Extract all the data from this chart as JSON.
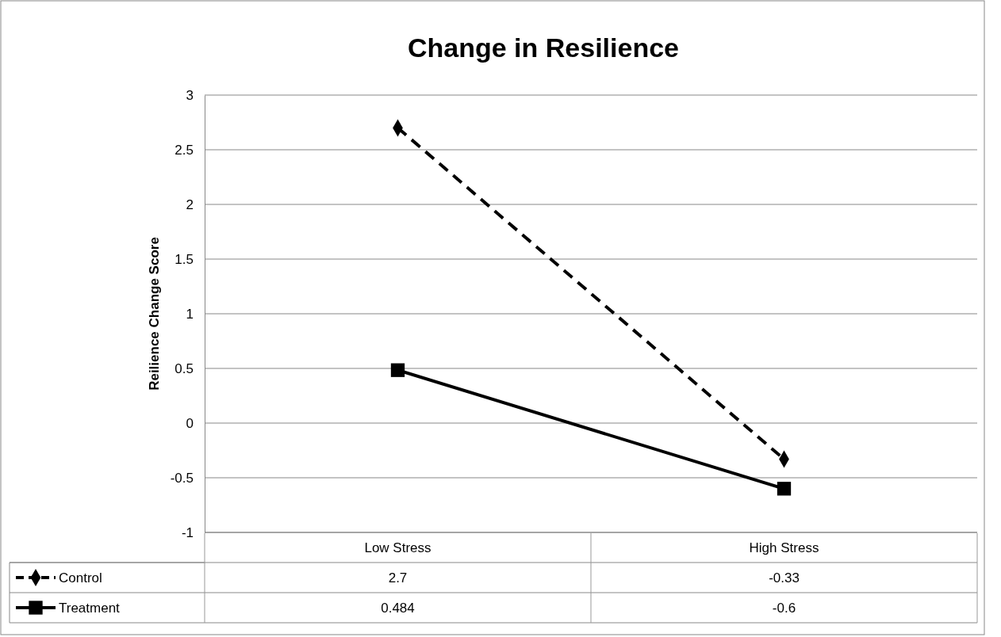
{
  "chart_data": {
    "type": "line",
    "title": "Change in Resilience",
    "ylabel": "Reilience Change Score",
    "categories": [
      "Low Stress",
      "High Stress"
    ],
    "series": [
      {
        "name": "Control",
        "color": "#000000",
        "values": [
          2.7,
          -0.33
        ],
        "marker": "diamond",
        "line_style": "dashed"
      },
      {
        "name": "Treatment",
        "color": "#000000",
        "values": [
          0.484,
          -0.6
        ],
        "marker": "square",
        "line_style": "solid"
      }
    ],
    "ylim": [
      -1,
      3
    ],
    "yticks": [
      -1,
      -0.5,
      0,
      0.5,
      1,
      1.5,
      2,
      2.5,
      3
    ],
    "grid": "y",
    "legend": "bottom left",
    "data_labels": true
  }
}
